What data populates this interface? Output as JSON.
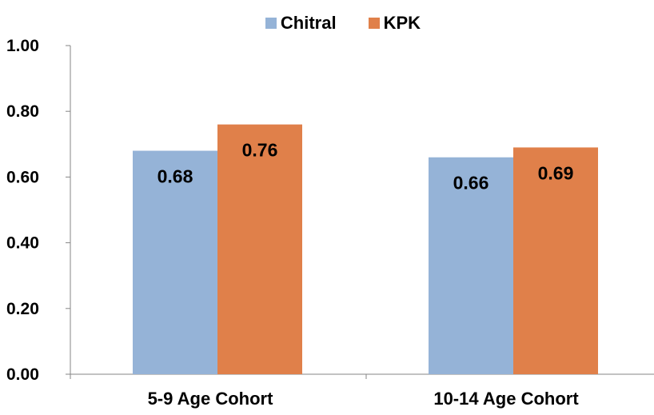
{
  "chart_data": {
    "type": "bar",
    "title": "",
    "xlabel": "",
    "ylabel": "",
    "categories": [
      "5-9 Age Cohort",
      "10-14 Age Cohort"
    ],
    "series": [
      {
        "name": "Chitral",
        "values": [
          0.68,
          0.66
        ],
        "labels": [
          "0.68",
          "0.66"
        ],
        "color": "#95B3D7"
      },
      {
        "name": "KPK",
        "values": [
          0.76,
          0.69
        ],
        "labels": [
          "0.76",
          "0.69"
        ],
        "color": "#E0804A"
      }
    ],
    "ylim": [
      0,
      1
    ],
    "yticks": [
      "0.00",
      "0.20",
      "0.40",
      "0.60",
      "0.80",
      "1.00"
    ],
    "grid": false,
    "legend_position": "top"
  }
}
